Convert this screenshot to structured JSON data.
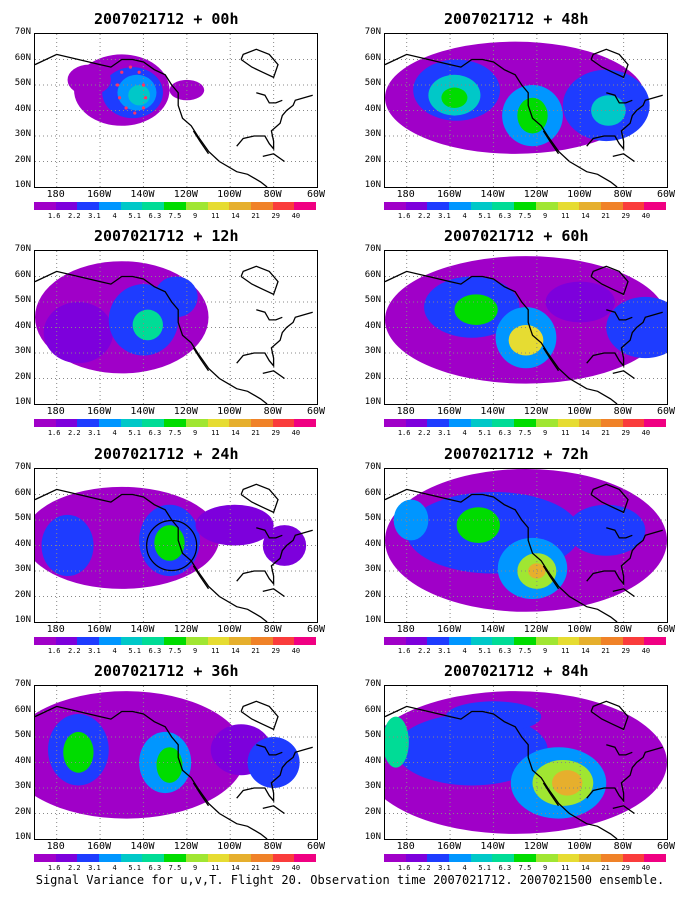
{
  "panels": [
    {
      "title": "2007021712 + 00h"
    },
    {
      "title": "2007021712 + 48h"
    },
    {
      "title": "2007021712 + 12h"
    },
    {
      "title": "2007021712 + 60h"
    },
    {
      "title": "2007021712 + 24h"
    },
    {
      "title": "2007021712 + 72h"
    },
    {
      "title": "2007021712 + 36h"
    },
    {
      "title": "2007021712 + 84h"
    }
  ],
  "latitude_labels": [
    "70N",
    "60N",
    "50N",
    "40N",
    "30N",
    "20N",
    "10N"
  ],
  "longitude_labels": [
    "180",
    "160W",
    "140W",
    "120W",
    "100W",
    "80W",
    "60W"
  ],
  "colorbar": {
    "labels": [
      "1.6",
      "2.2",
      "3.1",
      "4",
      "5.1",
      "6.3",
      "7.5",
      "9",
      "11",
      "14",
      "21",
      "29",
      "40"
    ],
    "colors": [
      "#a000c8",
      "#7d00dc",
      "#1e3cff",
      "#0096ff",
      "#00c8c8",
      "#00dc96",
      "#00dc00",
      "#a0e632",
      "#e6dc32",
      "#e6af2d",
      "#f08228",
      "#fa3c3c",
      "#f00082"
    ]
  },
  "footer": "Signal Variance for u,v,T. Flight 20. Observation time 2007021712. 2007021500 ensemble."
}
